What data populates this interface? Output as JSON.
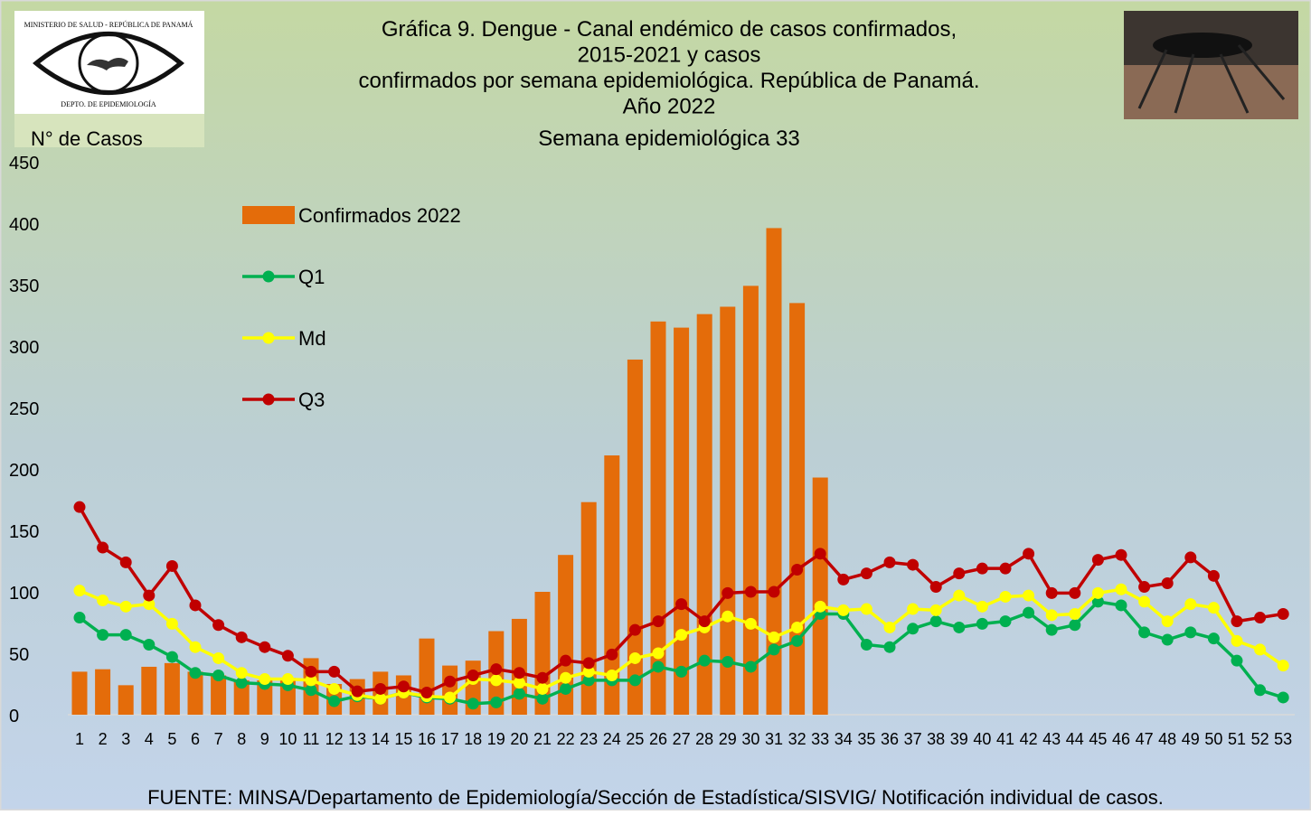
{
  "chart_data": {
    "type": "combo",
    "title_lines": [
      "Gráfica 9. Dengue - Canal endémico de casos confirmados,",
      "2015-2021 y casos",
      "confirmados por semana epidemiológica. República de Panamá.",
      "Año 2022"
    ],
    "subtitle": "Semana epidemiológica 33",
    "y_label": "N° de Casos",
    "logo_top": "MINISTERIO DE SALUD - REPÚBLICA DE PANAMÁ",
    "logo_bottom": "DEPTO. DE EPIDEMIOLOGÍA",
    "source": "FUENTE: MINSA/Departamento de Epidemiología/Sección de Estadística/SISVIG/ Notificación individual de casos.",
    "categories": [
      "1",
      "2",
      "3",
      "4",
      "5",
      "6",
      "7",
      "8",
      "9",
      "10",
      "11",
      "12",
      "13",
      "14",
      "15",
      "16",
      "17",
      "18",
      "19",
      "20",
      "21",
      "22",
      "23",
      "24",
      "25",
      "26",
      "27",
      "28",
      "29",
      "30",
      "31",
      "32",
      "33",
      "34",
      "35",
      "36",
      "37",
      "38",
      "39",
      "40",
      "41",
      "42",
      "43",
      "44",
      "45",
      "46",
      "47",
      "48",
      "49",
      "50",
      "51",
      "52",
      "53"
    ],
    "series": [
      {
        "name": "Confirmados 2022",
        "type": "bar",
        "color": "#e46c0a",
        "values": [
          35,
          37,
          24,
          39,
          42,
          35,
          32,
          28,
          28,
          30,
          46,
          25,
          29,
          35,
          32,
          62,
          40,
          44,
          68,
          78,
          100,
          130,
          173,
          211,
          289,
          320,
          315,
          326,
          332,
          349,
          396,
          335,
          193,
          null,
          null,
          null,
          null,
          null,
          null,
          null,
          null,
          null,
          null,
          null,
          null,
          null,
          null,
          null,
          null,
          null,
          null,
          null,
          null
        ]
      },
      {
        "name": "Q1",
        "type": "line",
        "color": "#00b050",
        "values": [
          79,
          65,
          65,
          57,
          47,
          34,
          32,
          26,
          25,
          24,
          20,
          11,
          15,
          13,
          18,
          14,
          13,
          9,
          10,
          17,
          13,
          21,
          28,
          28,
          28,
          39,
          35,
          44,
          43,
          39,
          53,
          60,
          82,
          82,
          57,
          55,
          70,
          76,
          71,
          74,
          76,
          83,
          69,
          73,
          92,
          89,
          67,
          61,
          67,
          62,
          44,
          20,
          14
        ]
      },
      {
        "name": "Md",
        "type": "line",
        "color": "#ffff00",
        "values": [
          101,
          93,
          88,
          90,
          74,
          55,
          46,
          34,
          29,
          29,
          28,
          21,
          16,
          13,
          18,
          15,
          14,
          29,
          28,
          26,
          21,
          30,
          35,
          32,
          46,
          50,
          65,
          71,
          80,
          74,
          63,
          71,
          88,
          85,
          86,
          71,
          86,
          85,
          97,
          88,
          96,
          97,
          81,
          82,
          99,
          102,
          92,
          76,
          90,
          87,
          60,
          53,
          40
        ]
      },
      {
        "name": "Q3",
        "type": "line",
        "color": "#c00000",
        "values": [
          169,
          136,
          124,
          97,
          121,
          89,
          73,
          63,
          55,
          48,
          35,
          35,
          19,
          21,
          23,
          18,
          27,
          32,
          37,
          34,
          30,
          44,
          42,
          49,
          69,
          76,
          90,
          76,
          99,
          100,
          100,
          118,
          131,
          110,
          115,
          124,
          122,
          104,
          115,
          119,
          119,
          131,
          99,
          99,
          126,
          130,
          104,
          107,
          128,
          113,
          76,
          79,
          82
        ]
      }
    ],
    "ylim": [
      0,
      450
    ],
    "yticks": [
      0,
      50,
      100,
      150,
      200,
      250,
      300,
      350,
      400,
      450
    ],
    "grid": false,
    "legend": "upper left"
  }
}
